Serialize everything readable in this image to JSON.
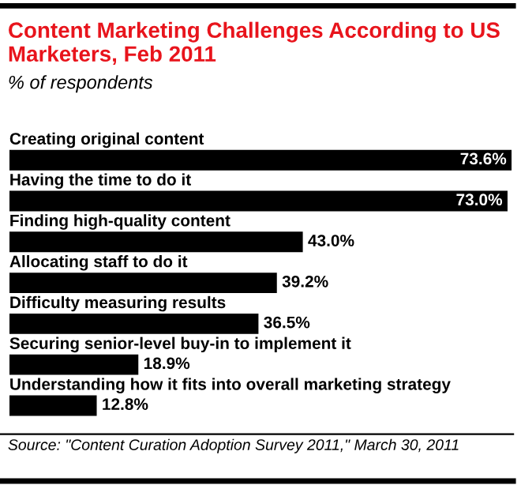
{
  "chart_data": {
    "type": "bar",
    "orientation": "horizontal",
    "title": "Content Marketing Challenges According to US Marketers, Feb 2011",
    "subtitle": "% of respondents",
    "categories": [
      "Creating original content",
      "Having the time to do it",
      "Finding high-quality content",
      "Allocating staff to do it",
      "Difficulty measuring results",
      "Securing senior-level buy-in to implement it",
      "Understanding how it fits into overall marketing strategy"
    ],
    "values": [
      73.6,
      73.0,
      43.0,
      39.2,
      36.5,
      18.9,
      12.8
    ],
    "value_labels": [
      "73.6%",
      "73.0%",
      "43.0%",
      "39.2%",
      "36.5%",
      "18.9%",
      "12.8%"
    ],
    "color": "#000000",
    "annotations": [
      "Source: \"Content Curation Adoption Survey 2011,\" March 30, 2011"
    ]
  }
}
